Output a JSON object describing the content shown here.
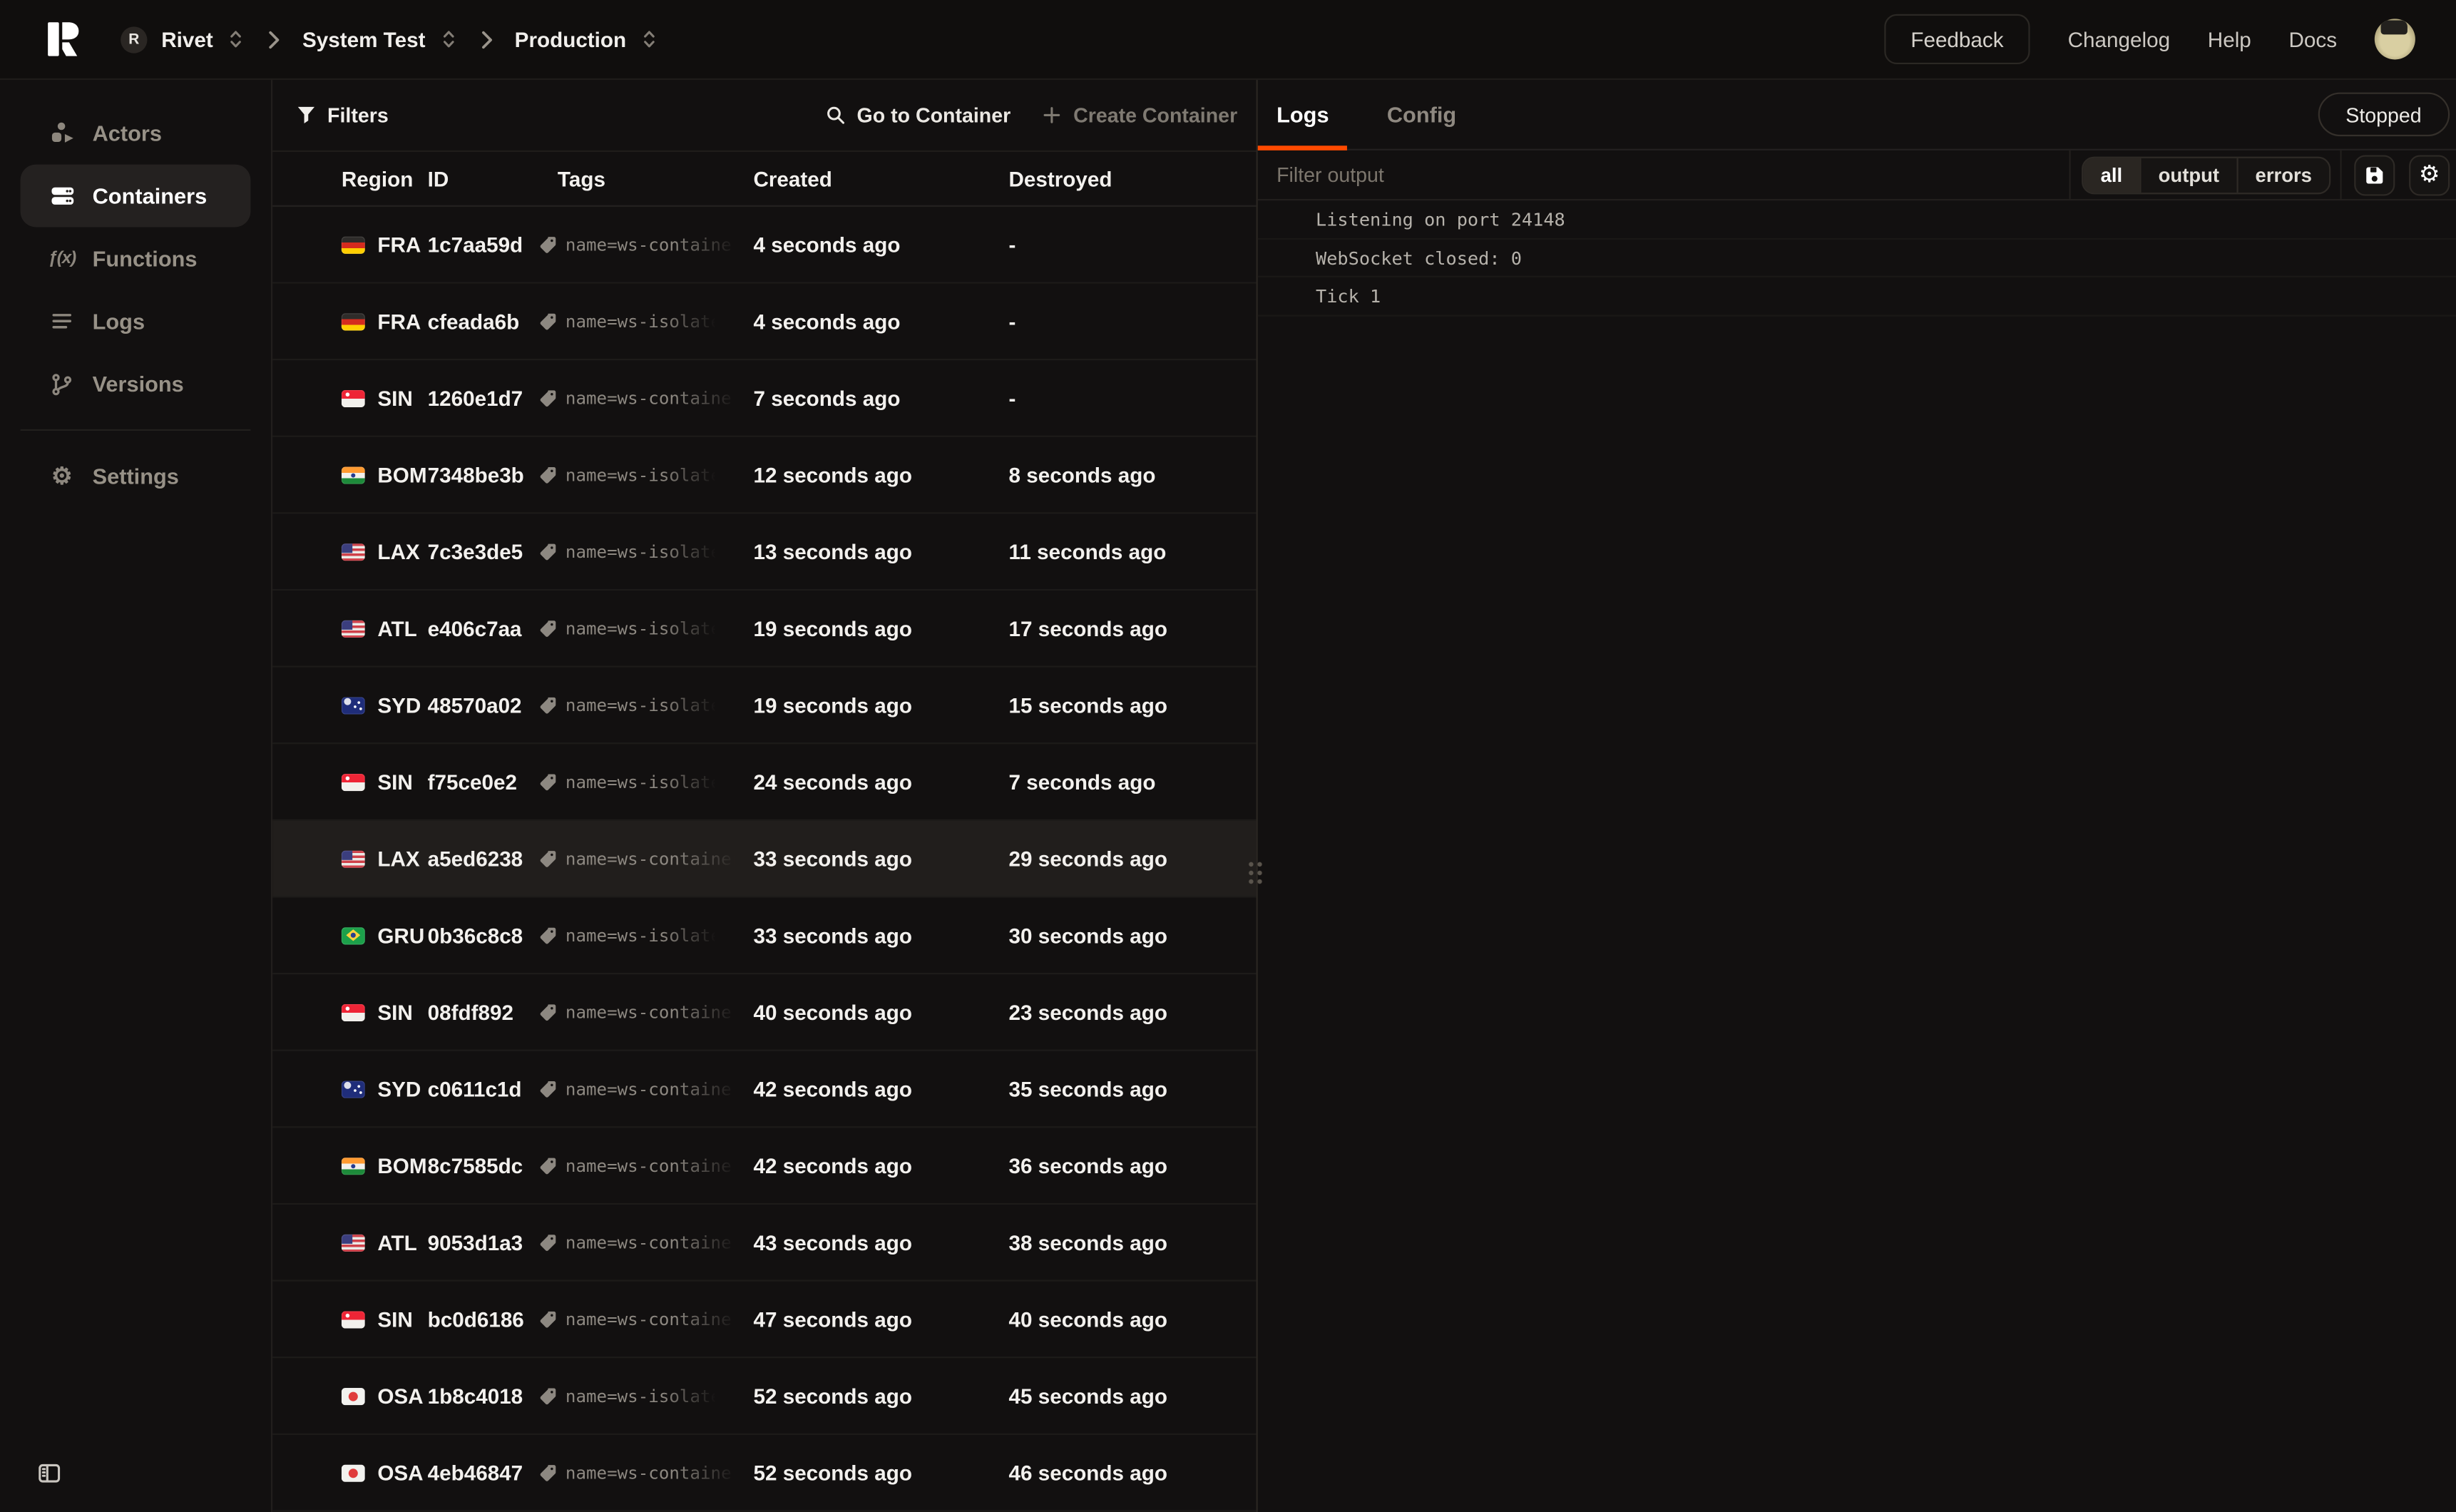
{
  "colors": {
    "accent": "#ff4a00",
    "background": "#121010",
    "selected_row": "#211e1c"
  },
  "icons": {
    "logo": "rivet-r-mark",
    "breadcrumb_separator": "chevron-right",
    "breadcrumb_selector": "chevrons-up-down",
    "filters": "funnel",
    "go_to_container": "magnifier",
    "create_container": "plus",
    "tag": "tag",
    "save": "floppy-disk",
    "settings_small": "gear",
    "sidebar_collapse": "panel-left",
    "resize_handle": "grip-dots"
  },
  "topbar": {
    "logo_letter": "R",
    "breadcrumb": [
      {
        "avatar_letter": "R",
        "label": "Rivet"
      },
      {
        "label": "System Test"
      },
      {
        "label": "Production"
      }
    ],
    "feedback_label": "Feedback",
    "links": {
      "changelog": "Changelog",
      "help": "Help",
      "docs": "Docs"
    }
  },
  "sidebar": {
    "items": [
      {
        "label": "Actors",
        "icon": "actors-icon",
        "active": false
      },
      {
        "label": "Containers",
        "icon": "containers-icon",
        "active": true
      },
      {
        "label": "Functions",
        "icon": "functions-icon",
        "active": false
      },
      {
        "label": "Logs",
        "icon": "logs-icon",
        "active": false
      },
      {
        "label": "Versions",
        "icon": "versions-icon",
        "active": false
      }
    ],
    "settings_label": "Settings"
  },
  "toolbar": {
    "filters_label": "Filters",
    "go_to_container_label": "Go to Container",
    "create_container_label": "Create Container"
  },
  "table": {
    "columns": [
      "Region",
      "ID",
      "Tags",
      "Created",
      "Destroyed"
    ],
    "rows": [
      {
        "flag": "de",
        "region": "FRA",
        "id": "1c7aa59d",
        "tag": "name=ws-container",
        "created": "4 seconds ago",
        "destroyed": "-",
        "highlighted": false
      },
      {
        "flag": "de",
        "region": "FRA",
        "id": "cfeada6b",
        "tag": "name=ws-isolate",
        "created": "4 seconds ago",
        "destroyed": "-",
        "highlighted": false
      },
      {
        "flag": "sg",
        "region": "SIN",
        "id": "1260e1d7",
        "tag": "name=ws-container",
        "created": "7 seconds ago",
        "destroyed": "-",
        "highlighted": false
      },
      {
        "flag": "in",
        "region": "BOM",
        "id": "7348be3b",
        "tag": "name=ws-isolate",
        "created": "12 seconds ago",
        "destroyed": "8 seconds ago",
        "highlighted": false
      },
      {
        "flag": "us",
        "region": "LAX",
        "id": "7c3e3de5",
        "tag": "name=ws-isolate",
        "created": "13 seconds ago",
        "destroyed": "11 seconds ago",
        "highlighted": false
      },
      {
        "flag": "us",
        "region": "ATL",
        "id": "e406c7aa",
        "tag": "name=ws-isolate",
        "created": "19 seconds ago",
        "destroyed": "17 seconds ago",
        "highlighted": false
      },
      {
        "flag": "au",
        "region": "SYD",
        "id": "48570a02",
        "tag": "name=ws-isolate",
        "created": "19 seconds ago",
        "destroyed": "15 seconds ago",
        "highlighted": false
      },
      {
        "flag": "sg",
        "region": "SIN",
        "id": "f75ce0e2",
        "tag": "name=ws-isolate",
        "created": "24 seconds ago",
        "destroyed": "7 seconds ago",
        "highlighted": false
      },
      {
        "flag": "us",
        "region": "LAX",
        "id": "a5ed6238",
        "tag": "name=ws-container",
        "created": "33 seconds ago",
        "destroyed": "29 seconds ago",
        "highlighted": true
      },
      {
        "flag": "br",
        "region": "GRU",
        "id": "0b36c8c8",
        "tag": "name=ws-isolate",
        "created": "33 seconds ago",
        "destroyed": "30 seconds ago",
        "highlighted": false
      },
      {
        "flag": "sg",
        "region": "SIN",
        "id": "08fdf892",
        "tag": "name=ws-container",
        "created": "40 seconds ago",
        "destroyed": "23 seconds ago",
        "highlighted": false
      },
      {
        "flag": "au",
        "region": "SYD",
        "id": "c0611c1d",
        "tag": "name=ws-container",
        "created": "42 seconds ago",
        "destroyed": "35 seconds ago",
        "highlighted": false
      },
      {
        "flag": "in",
        "region": "BOM",
        "id": "8c7585dc",
        "tag": "name=ws-container",
        "created": "42 seconds ago",
        "destroyed": "36 seconds ago",
        "highlighted": false
      },
      {
        "flag": "us",
        "region": "ATL",
        "id": "9053d1a3",
        "tag": "name=ws-container",
        "created": "43 seconds ago",
        "destroyed": "38 seconds ago",
        "highlighted": false
      },
      {
        "flag": "sg",
        "region": "SIN",
        "id": "bc0d6186",
        "tag": "name=ws-container",
        "created": "47 seconds ago",
        "destroyed": "40 seconds ago",
        "highlighted": false
      },
      {
        "flag": "jp",
        "region": "OSA",
        "id": "1b8c4018",
        "tag": "name=ws-isolate",
        "created": "52 seconds ago",
        "destroyed": "45 seconds ago",
        "highlighted": false
      },
      {
        "flag": "jp",
        "region": "OSA",
        "id": "4eb46847",
        "tag": "name=ws-container",
        "created": "52 seconds ago",
        "destroyed": "46 seconds ago",
        "highlighted": false
      }
    ]
  },
  "logs_panel": {
    "tabs": [
      {
        "label": "Logs",
        "active": true
      },
      {
        "label": "Config",
        "active": false
      }
    ],
    "status": "Stopped",
    "filter_placeholder": "Filter output",
    "filter_buttons": [
      "all",
      "output",
      "errors"
    ],
    "active_filter": "all",
    "lines": [
      "Listening on port 24148",
      "WebSocket closed: 0",
      "Tick 1"
    ]
  }
}
